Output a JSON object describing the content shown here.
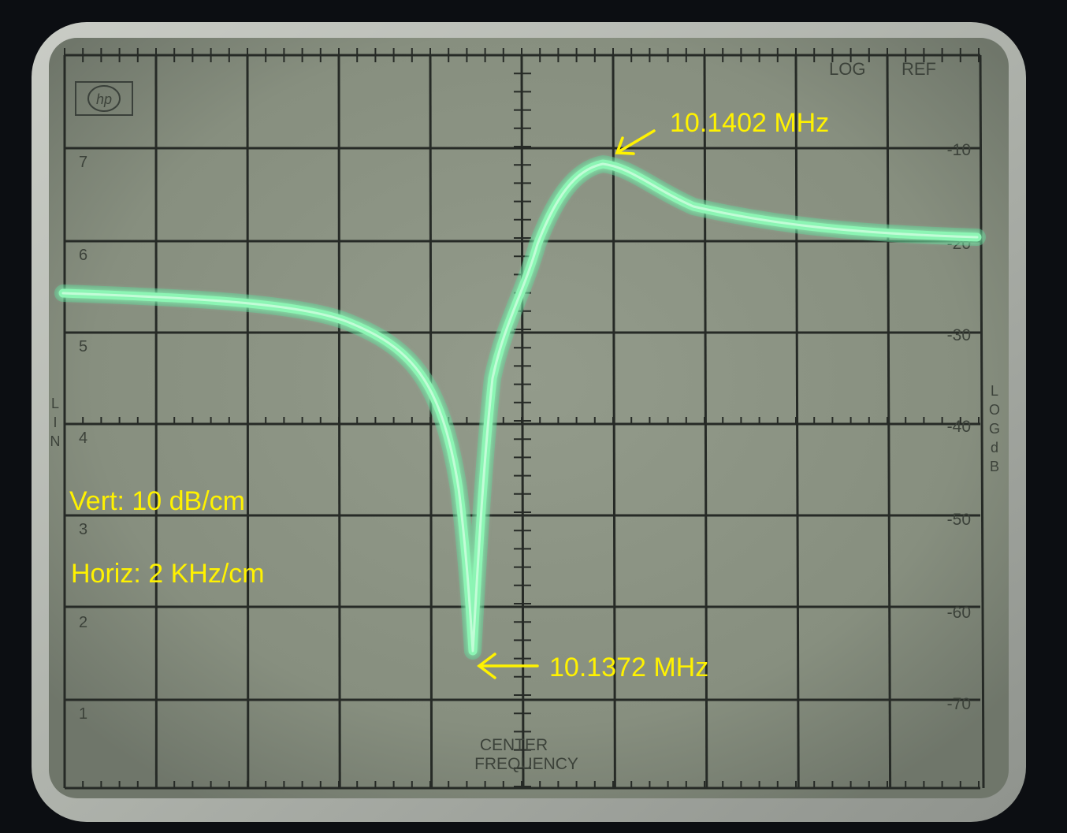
{
  "photo": {
    "subject": "hp spectrum analyzer CRT screen showing a resonance notch and peak",
    "logo": "hp",
    "colors": {
      "background": "#0c0e12",
      "bezel": "#b5b9b2",
      "screen": "#8c9484",
      "grid": "#262a26",
      "trace": "#8cf5b4",
      "annotation": "#fff200"
    }
  },
  "graticule": {
    "log_label": "LOG",
    "ref_label": "REF",
    "lin_label": [
      "L",
      "I",
      "N"
    ],
    "log_db_label": [
      "L",
      "O",
      "G",
      "d",
      "B"
    ],
    "center_label_line1": "CENTER",
    "center_label_line2": "FREQUENCY",
    "left_scale": [
      "7",
      "6",
      "5",
      "4",
      "3",
      "2",
      "1"
    ],
    "right_scale": [
      "-10",
      "-20",
      "-30",
      "-40",
      "-50",
      "-60",
      "-70"
    ]
  },
  "annotations": {
    "peak_label": "10.1402 MHz",
    "notch_label": "10.1372 MHz",
    "vert_label": "Vert: 10 dB/cm",
    "horiz_label": "Horiz: 2 KHz/cm"
  }
}
